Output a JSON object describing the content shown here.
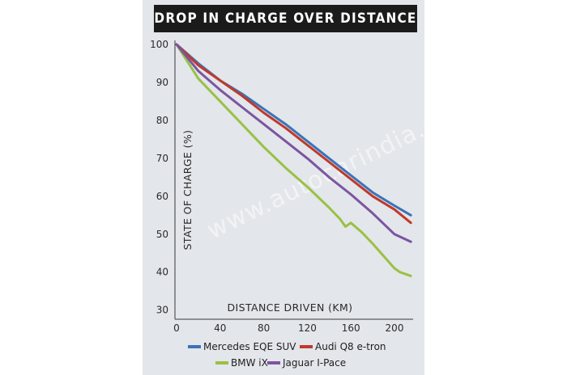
{
  "chart_data": {
    "type": "line",
    "title": "DROP IN CHARGE OVER DISTANCE",
    "xlabel": "DISTANCE DRIVEN (KM)",
    "ylabel": "STATE OF CHARGE (%)",
    "xlim": [
      0,
      215
    ],
    "ylim": [
      30,
      100
    ],
    "xticks": [
      0,
      40,
      80,
      120,
      160,
      200
    ],
    "yticks": [
      30,
      40,
      50,
      60,
      70,
      80,
      90,
      100
    ],
    "grid": false,
    "legend_position": "bottom",
    "watermark": "www.autocarindia.com",
    "series": [
      {
        "name": "Mercedes EQE SUV",
        "color": "#3a73b8",
        "points": [
          [
            0,
            100
          ],
          [
            20,
            95
          ],
          [
            40,
            90.5
          ],
          [
            60,
            87
          ],
          [
            80,
            83
          ],
          [
            100,
            79
          ],
          [
            120,
            74.5
          ],
          [
            140,
            70
          ],
          [
            160,
            65.5
          ],
          [
            180,
            61
          ],
          [
            200,
            57.5
          ],
          [
            215,
            55
          ]
        ]
      },
      {
        "name": "Audi Q8 e-tron",
        "color": "#c0392b",
        "points": [
          [
            0,
            100
          ],
          [
            20,
            94.5
          ],
          [
            40,
            90.5
          ],
          [
            60,
            86.5
          ],
          [
            80,
            82
          ],
          [
            100,
            78
          ],
          [
            120,
            73.5
          ],
          [
            140,
            69
          ],
          [
            160,
            64.5
          ],
          [
            180,
            60
          ],
          [
            200,
            56.5
          ],
          [
            215,
            53
          ]
        ]
      },
      {
        "name": "BMW iX",
        "color": "#9ac045",
        "points": [
          [
            0,
            100
          ],
          [
            10,
            95.5
          ],
          [
            20,
            91
          ],
          [
            40,
            85
          ],
          [
            60,
            79
          ],
          [
            80,
            73
          ],
          [
            100,
            67.5
          ],
          [
            120,
            62.5
          ],
          [
            140,
            57
          ],
          [
            150,
            54
          ],
          [
            155,
            52
          ],
          [
            160,
            53
          ],
          [
            170,
            50.5
          ],
          [
            180,
            47.5
          ],
          [
            200,
            41
          ],
          [
            205,
            40
          ],
          [
            215,
            39
          ]
        ]
      },
      {
        "name": "Jaguar I-Pace",
        "color": "#7b55a0",
        "points": [
          [
            0,
            100
          ],
          [
            20,
            93
          ],
          [
            40,
            88
          ],
          [
            60,
            83.5
          ],
          [
            80,
            79
          ],
          [
            100,
            74.5
          ],
          [
            120,
            70
          ],
          [
            140,
            65
          ],
          [
            160,
            60.5
          ],
          [
            180,
            55.5
          ],
          [
            200,
            50
          ],
          [
            215,
            48
          ]
        ]
      }
    ]
  }
}
